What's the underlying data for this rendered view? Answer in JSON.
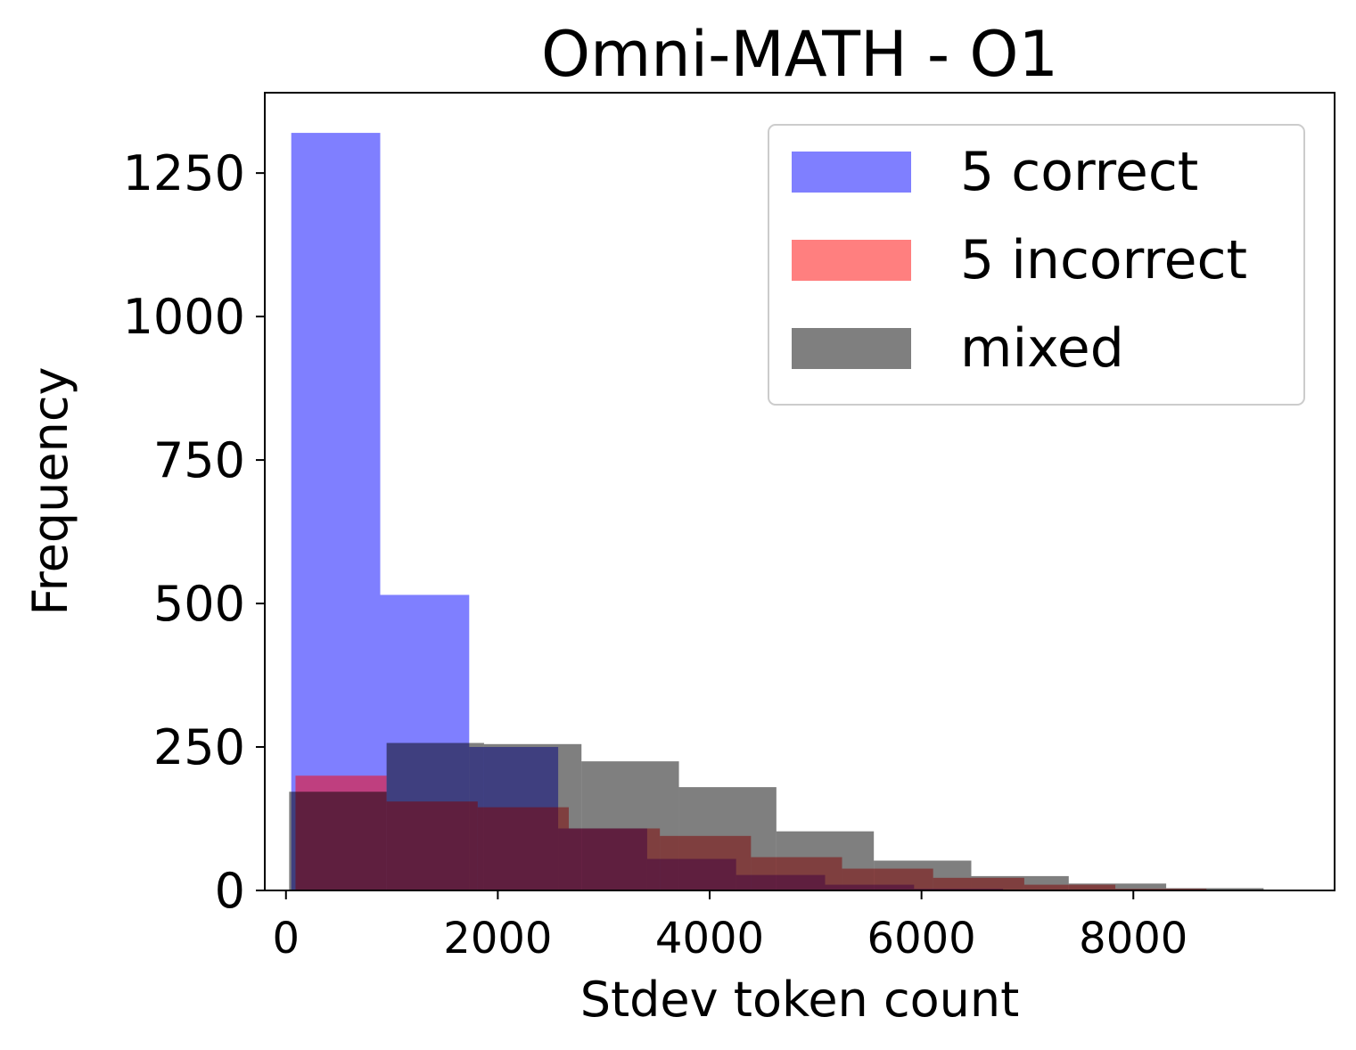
{
  "chart_data": {
    "type": "bar",
    "title": "Omni-MATH - O1",
    "xlabel": "Stdev token count",
    "ylabel": "Frequency",
    "xlim": [
      -200,
      9900
    ],
    "ylim": [
      0,
      1390
    ],
    "xticks": [
      0,
      2000,
      4000,
      6000,
      8000
    ],
    "yticks": [
      0,
      250,
      500,
      750,
      1000,
      1250
    ],
    "legend_position": "top-right",
    "series": [
      {
        "name": "5 correct",
        "color": "#0000ff",
        "bins": [
          {
            "x0": 50,
            "x1": 890,
            "value": 1320
          },
          {
            "x0": 890,
            "x1": 1730,
            "value": 515
          },
          {
            "x0": 1730,
            "x1": 2570,
            "value": 250
          },
          {
            "x0": 2570,
            "x1": 3410,
            "value": 108
          },
          {
            "x0": 3410,
            "x1": 4250,
            "value": 55
          },
          {
            "x0": 4250,
            "x1": 5090,
            "value": 27
          },
          {
            "x0": 5090,
            "x1": 5930,
            "value": 10
          },
          {
            "x0": 5930,
            "x1": 6770,
            "value": 3
          }
        ]
      },
      {
        "name": "5 incorrect",
        "color": "#ff0000",
        "bins": [
          {
            "x0": 90,
            "x1": 950,
            "value": 200
          },
          {
            "x0": 950,
            "x1": 1810,
            "value": 155
          },
          {
            "x0": 1810,
            "x1": 2670,
            "value": 145
          },
          {
            "x0": 2670,
            "x1": 3530,
            "value": 108
          },
          {
            "x0": 3530,
            "x1": 4390,
            "value": 95
          },
          {
            "x0": 4390,
            "x1": 5250,
            "value": 58
          },
          {
            "x0": 5250,
            "x1": 6110,
            "value": 38
          },
          {
            "x0": 6110,
            "x1": 6970,
            "value": 22
          },
          {
            "x0": 6970,
            "x1": 7830,
            "value": 10
          },
          {
            "x0": 7830,
            "x1": 8690,
            "value": 3
          }
        ]
      },
      {
        "name": "mixed",
        "color": "#000000",
        "bins": [
          {
            "x0": 30,
            "x1": 950,
            "value": 172
          },
          {
            "x0": 950,
            "x1": 1870,
            "value": 257
          },
          {
            "x0": 1870,
            "x1": 2790,
            "value": 255
          },
          {
            "x0": 2790,
            "x1": 3710,
            "value": 225
          },
          {
            "x0": 3710,
            "x1": 4630,
            "value": 180
          },
          {
            "x0": 4630,
            "x1": 5550,
            "value": 103
          },
          {
            "x0": 5550,
            "x1": 6470,
            "value": 52
          },
          {
            "x0": 6470,
            "x1": 7390,
            "value": 25
          },
          {
            "x0": 7390,
            "x1": 8310,
            "value": 12
          },
          {
            "x0": 8310,
            "x1": 9230,
            "value": 4
          }
        ]
      }
    ]
  }
}
